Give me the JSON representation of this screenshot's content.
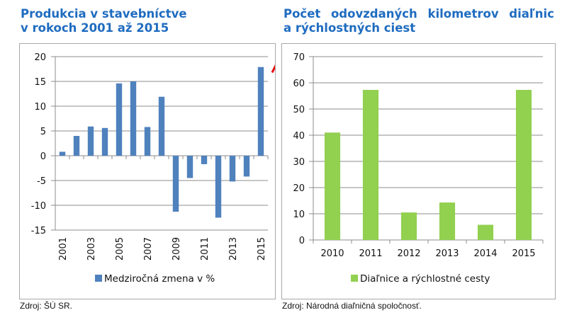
{
  "titles": {
    "left_line1": "Produkcia v stavebníctve",
    "left_line2": "v rokoch 2001 až 2015",
    "right_line1_words": [
      "Počet",
      "odovzdaných",
      "kilometrov",
      "diaľnic"
    ],
    "right_line2": "a rýchlostných ciest"
  },
  "sources": {
    "left": "Zdroj: ŠÚ SR.",
    "right": "Zdroj: Národná diaľničná spoločnosť."
  },
  "colors": {
    "left_series": "#4f81bd",
    "right_series": "#92d050",
    "title": "#1f6cc0",
    "arrow": "#e8000b",
    "grid": "#8c8c8c"
  },
  "chart_data": [
    {
      "type": "bar",
      "title": "Produkcia v stavebníctve v rokoch 2001 až 2015",
      "categories": [
        "2001",
        "2002",
        "2003",
        "2004",
        "2005",
        "2006",
        "2007",
        "2008",
        "2009",
        "2010",
        "2011",
        "2012",
        "2013",
        "2014",
        "2015"
      ],
      "tick_labels": [
        "2001",
        "2003",
        "2005",
        "2007",
        "2009",
        "2011",
        "2013",
        "2015"
      ],
      "series": [
        {
          "name": "Medziročná zmena v %",
          "values": [
            0.8,
            4.0,
            5.9,
            5.6,
            14.6,
            15.0,
            5.8,
            11.9,
            -11.3,
            -4.5,
            -1.7,
            -12.5,
            -5.2,
            -4.2,
            17.9
          ]
        }
      ],
      "ylim": [
        -15,
        20
      ],
      "yticks": [
        -15,
        -10,
        -5,
        0,
        5,
        10,
        15,
        20
      ],
      "grid": true,
      "legend": "bottom",
      "annotation": "red upward arrow next to 2015",
      "xlabel": "",
      "ylabel": ""
    },
    {
      "type": "bar",
      "title": "Počet odovzdaných kilometrov diaľnic a rýchlostných ciest",
      "categories": [
        "2010",
        "2011",
        "2012",
        "2013",
        "2014",
        "2015"
      ],
      "series": [
        {
          "name": "Diaľnice a rýchlostné cesty",
          "values": [
            41.0,
            57.3,
            10.5,
            14.3,
            5.8,
            57.3
          ]
        }
      ],
      "ylim": [
        0,
        70
      ],
      "yticks": [
        0,
        10,
        20,
        30,
        40,
        50,
        60,
        70
      ],
      "grid": true,
      "legend": "bottom",
      "xlabel": "",
      "ylabel": ""
    }
  ]
}
